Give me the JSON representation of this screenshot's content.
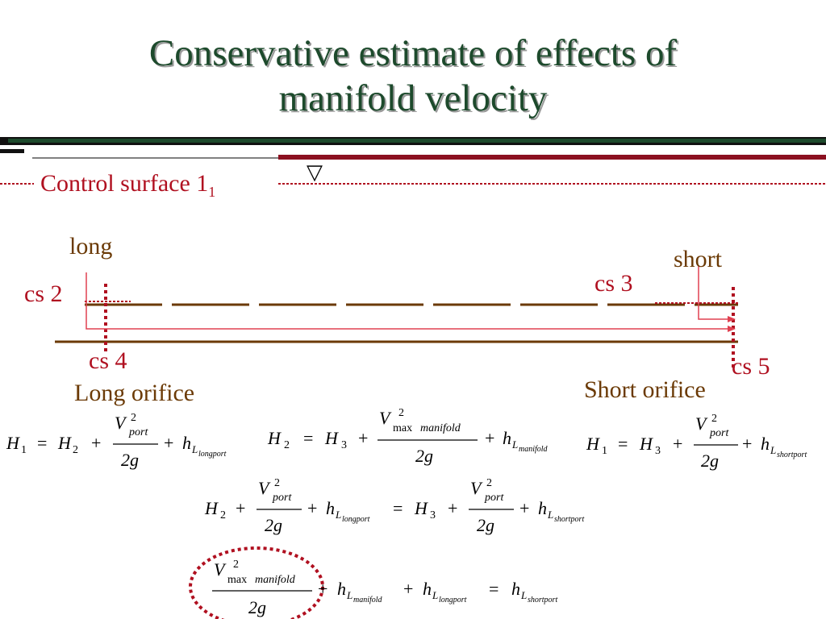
{
  "title_line1": "Conservative estimate of effects of",
  "title_line2": "manifold velocity",
  "labels": {
    "control_surface": "Control surface 1",
    "control_surface_sub": "1",
    "water_level_symbol": "▽",
    "long": "long",
    "short": "short",
    "cs2": "cs 2",
    "cs3": "cs 3",
    "cs4": "cs 4",
    "cs5": "cs 5",
    "long_orifice": "Long orifice",
    "short_orifice": "Short orifice"
  },
  "eq_tokens": {
    "H": "H",
    "V": "V",
    "h": "h",
    "L": "L",
    "g2": "2g",
    "two": "2",
    "sub1": "1",
    "sub2": "2",
    "sub3": "3",
    "eq": "=",
    "plus": "+",
    "port": "port",
    "max": "max",
    "manifold": "manifold",
    "longport": "longport",
    "shortport": "shortport"
  },
  "colors": {
    "title": "#1d4a2c",
    "red": "#b01020",
    "brown": "#6b3a06",
    "arrow": "#e04050"
  }
}
